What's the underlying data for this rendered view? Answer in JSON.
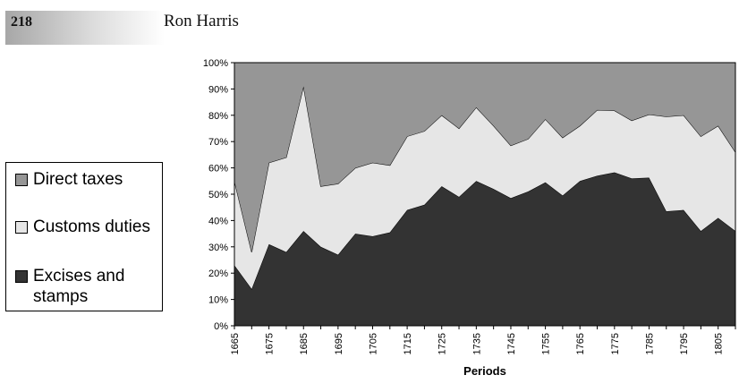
{
  "page": {
    "page_number": "218",
    "running_head": "Ron Harris"
  },
  "colors": {
    "direct": "#969696",
    "customs": "#e6e6e6",
    "excises": "#333333"
  },
  "chart_data": {
    "type": "area",
    "stacked": true,
    "xlabel": "Periods",
    "ylabel": "",
    "ylim": [
      0,
      100
    ],
    "y_ticks": [
      "0%",
      "10%",
      "20%",
      "30%",
      "40%",
      "50%",
      "60%",
      "70%",
      "80%",
      "90%",
      "100%"
    ],
    "x": [
      1665,
      1670,
      1675,
      1680,
      1685,
      1690,
      1695,
      1700,
      1705,
      1710,
      1715,
      1720,
      1725,
      1730,
      1735,
      1740,
      1745,
      1750,
      1755,
      1760,
      1765,
      1770,
      1775,
      1780,
      1785,
      1790,
      1795,
      1800,
      1805,
      1810
    ],
    "x_tick_labels": [
      "1665",
      "1675",
      "1685",
      "1695",
      "1705",
      "1715",
      "1725",
      "1735",
      "1745",
      "1755",
      "1765",
      "1775",
      "1785",
      "1795",
      "1805"
    ],
    "x_tick_values": [
      1665,
      1675,
      1685,
      1695,
      1705,
      1715,
      1725,
      1735,
      1745,
      1755,
      1765,
      1775,
      1785,
      1795,
      1805
    ],
    "legend": "left",
    "series": [
      {
        "name": "Excises and stamps",
        "key": "excises",
        "values": [
          23,
          14,
          31,
          28,
          36,
          30,
          27,
          35,
          34,
          35.5,
          44,
          46,
          53,
          49,
          55,
          52,
          48.5,
          51,
          54.5,
          49.5,
          55,
          57,
          58.3,
          56,
          56.3,
          43.5,
          44,
          36,
          41,
          36
        ]
      },
      {
        "name": "Customs duties",
        "key": "customs",
        "values": [
          32,
          14,
          31,
          36,
          55,
          23,
          27,
          25,
          28,
          25.5,
          28,
          28,
          27,
          26,
          28,
          24,
          20,
          20,
          24,
          22,
          21,
          25,
          23.5,
          22,
          24,
          36,
          36,
          36,
          35,
          30
        ]
      },
      {
        "name": "Direct taxes",
        "key": "direct",
        "values": [
          45,
          72,
          38,
          36,
          9,
          47,
          46,
          40,
          38,
          39,
          28,
          26,
          20,
          25,
          17,
          24,
          31.5,
          29,
          21.5,
          28.5,
          24,
          18,
          18.2,
          22,
          19.7,
          20.5,
          20,
          28,
          24,
          34
        ]
      }
    ]
  },
  "legend_items": [
    {
      "label": "Direct taxes",
      "key": "direct"
    },
    {
      "label": "Customs duties",
      "key": "customs"
    },
    {
      "label": "Excises and stamps",
      "key": "excises"
    }
  ]
}
